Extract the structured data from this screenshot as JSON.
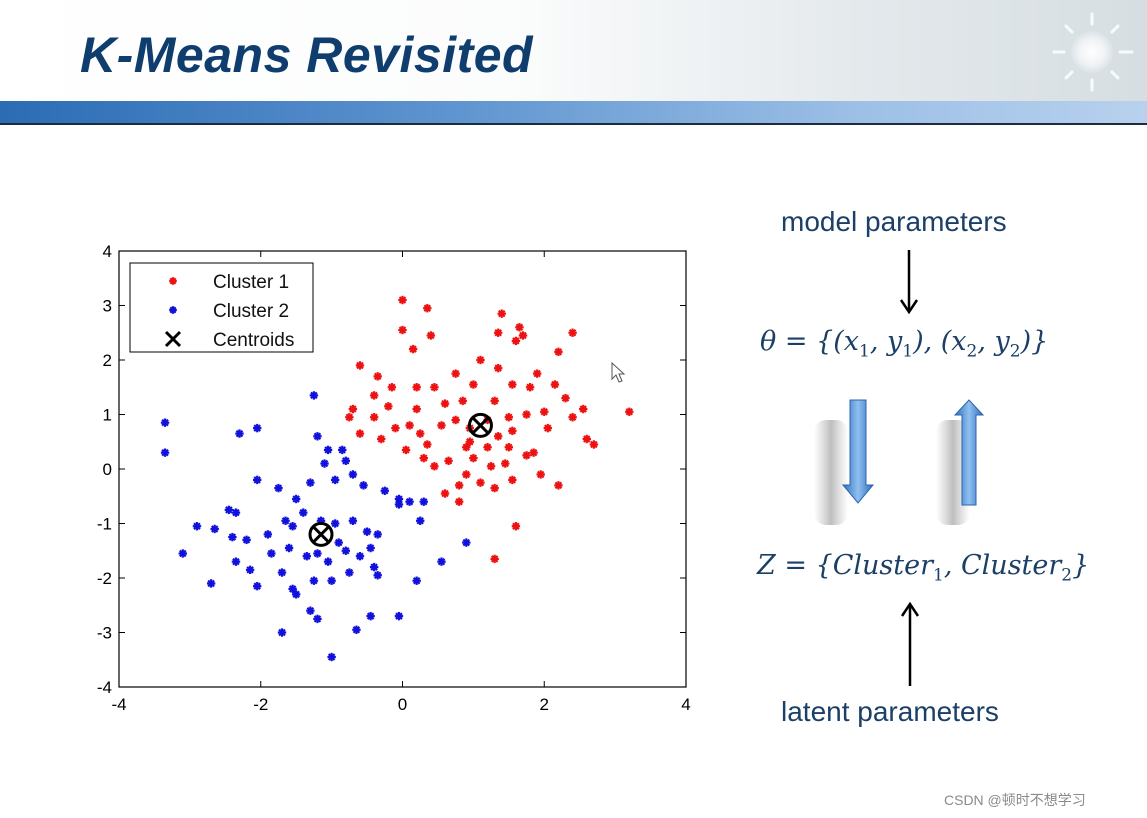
{
  "slide": {
    "title": "K-Means Revisited",
    "model_parameters_label": "model parameters",
    "theta_formula": {
      "lhs": "θ = {",
      "pairs": [
        "(x",
        "1",
        ", y",
        "1",
        "), (x",
        "2",
        ", y",
        "2",
        ")}"
      ]
    },
    "latent_parameters_label": "latent parameters",
    "z_formula": {
      "text_a": "Z = {Cluster",
      "sub_a": "1",
      "text_b": ",  Cluster",
      "sub_b": "2",
      "text_c": "}"
    },
    "watermark": "CSDN @顿时不想学习"
  },
  "colors": {
    "title": "#0f3d6e",
    "text": "#1b3f66",
    "cluster1": "#ee1111",
    "cluster2": "#1111dd",
    "centroid": "#000000",
    "arrow_blue": "#4a8fd8"
  },
  "chart_data": {
    "type": "scatter",
    "title": "",
    "xlabel": "",
    "ylabel": "",
    "xlim": [
      -4,
      4
    ],
    "ylim": [
      -4,
      4
    ],
    "x_ticks": [
      -4,
      -2,
      0,
      2,
      4
    ],
    "y_ticks": [
      -4,
      -3,
      -2,
      -1,
      0,
      1,
      2,
      3,
      4
    ],
    "grid": false,
    "legend_position": "top-left",
    "series": [
      {
        "name": "Cluster 1",
        "marker": "*",
        "points": [
          [
            0.0,
            3.1
          ],
          [
            0.35,
            2.95
          ],
          [
            1.4,
            2.85
          ],
          [
            1.65,
            2.6
          ],
          [
            2.4,
            2.5
          ],
          [
            1.35,
            2.5
          ],
          [
            0.0,
            2.55
          ],
          [
            -0.6,
            1.9
          ],
          [
            0.15,
            2.2
          ],
          [
            0.4,
            2.45
          ],
          [
            -0.35,
            1.7
          ],
          [
            -0.15,
            1.5
          ],
          [
            -0.7,
            1.1
          ],
          [
            -0.4,
            1.35
          ],
          [
            0.2,
            1.5
          ],
          [
            0.45,
            1.5
          ],
          [
            0.75,
            1.75
          ],
          [
            1.1,
            2.0
          ],
          [
            1.6,
            2.35
          ],
          [
            1.7,
            2.45
          ],
          [
            2.2,
            2.15
          ],
          [
            1.35,
            1.85
          ],
          [
            1.9,
            1.75
          ],
          [
            2.15,
            1.55
          ],
          [
            2.55,
            1.1
          ],
          [
            2.3,
            1.3
          ],
          [
            1.8,
            1.5
          ],
          [
            1.55,
            1.55
          ],
          [
            1.3,
            1.25
          ],
          [
            0.85,
            1.25
          ],
          [
            0.6,
            1.2
          ],
          [
            0.2,
            1.1
          ],
          [
            -0.2,
            1.15
          ],
          [
            -0.4,
            0.95
          ],
          [
            -0.75,
            0.95
          ],
          [
            -0.6,
            0.65
          ],
          [
            -0.3,
            0.55
          ],
          [
            0.05,
            0.35
          ],
          [
            0.25,
            0.65
          ],
          [
            0.35,
            0.45
          ],
          [
            0.55,
            0.8
          ],
          [
            0.75,
            0.9
          ],
          [
            0.95,
            0.75
          ],
          [
            1.2,
            0.9
          ],
          [
            1.5,
            0.95
          ],
          [
            1.75,
            1.0
          ],
          [
            2.0,
            1.05
          ],
          [
            2.4,
            0.95
          ],
          [
            2.6,
            0.55
          ],
          [
            2.7,
            0.45
          ],
          [
            3.2,
            1.05
          ],
          [
            0.45,
            0.05
          ],
          [
            0.65,
            0.15
          ],
          [
            0.8,
            -0.3
          ],
          [
            0.9,
            -0.1
          ],
          [
            1.0,
            0.2
          ],
          [
            1.2,
            0.4
          ],
          [
            1.35,
            0.6
          ],
          [
            1.5,
            0.4
          ],
          [
            1.45,
            0.1
          ],
          [
            1.75,
            0.25
          ],
          [
            1.95,
            -0.1
          ],
          [
            2.2,
            -0.3
          ],
          [
            1.55,
            -0.2
          ],
          [
            1.3,
            -0.35
          ],
          [
            1.1,
            -0.25
          ],
          [
            0.8,
            -0.6
          ],
          [
            0.6,
            -0.45
          ],
          [
            0.9,
            0.4
          ],
          [
            0.3,
            0.2
          ],
          [
            1.6,
            -1.05
          ],
          [
            1.3,
            -1.65
          ],
          [
            -0.1,
            0.75
          ],
          [
            0.1,
            0.8
          ],
          [
            1.0,
            1.55
          ],
          [
            0.95,
            0.5
          ],
          [
            1.55,
            0.7
          ],
          [
            1.85,
            0.3
          ],
          [
            2.05,
            0.75
          ],
          [
            1.25,
            0.05
          ]
        ]
      },
      {
        "name": "Cluster 2",
        "marker": "*",
        "points": [
          [
            -3.35,
            0.85
          ],
          [
            -3.35,
            0.3
          ],
          [
            -2.3,
            0.65
          ],
          [
            -2.05,
            0.75
          ],
          [
            -1.25,
            1.35
          ],
          [
            -1.2,
            0.6
          ],
          [
            -1.05,
            0.35
          ],
          [
            -0.85,
            0.35
          ],
          [
            -1.1,
            0.1
          ],
          [
            -0.8,
            0.15
          ],
          [
            -2.05,
            -0.2
          ],
          [
            -1.75,
            -0.35
          ],
          [
            -1.5,
            -0.55
          ],
          [
            -1.3,
            -0.25
          ],
          [
            -0.95,
            -0.2
          ],
          [
            -0.7,
            -0.1
          ],
          [
            -0.55,
            -0.3
          ],
          [
            -0.25,
            -0.4
          ],
          [
            -0.05,
            -0.55
          ],
          [
            0.1,
            -0.6
          ],
          [
            -2.45,
            -0.75
          ],
          [
            -2.35,
            -0.8
          ],
          [
            -2.9,
            -1.05
          ],
          [
            -2.65,
            -1.1
          ],
          [
            -2.2,
            -1.3
          ],
          [
            -1.9,
            -1.2
          ],
          [
            -1.65,
            -0.95
          ],
          [
            -1.55,
            -1.05
          ],
          [
            -1.4,
            -0.8
          ],
          [
            -0.95,
            -1.0
          ],
          [
            -0.7,
            -0.95
          ],
          [
            -0.5,
            -1.15
          ],
          [
            -0.35,
            -1.2
          ],
          [
            -3.1,
            -1.55
          ],
          [
            -2.7,
            -2.1
          ],
          [
            -2.35,
            -1.7
          ],
          [
            -2.15,
            -1.85
          ],
          [
            -2.05,
            -2.15
          ],
          [
            -1.7,
            -1.9
          ],
          [
            -1.55,
            -2.2
          ],
          [
            -1.35,
            -1.6
          ],
          [
            -1.2,
            -1.55
          ],
          [
            -1.05,
            -1.7
          ],
          [
            -0.8,
            -1.5
          ],
          [
            -0.6,
            -1.6
          ],
          [
            -0.4,
            -1.8
          ],
          [
            -0.35,
            -1.95
          ],
          [
            -0.75,
            -1.9
          ],
          [
            -1.0,
            -2.05
          ],
          [
            -1.25,
            -2.05
          ],
          [
            -1.5,
            -2.3
          ],
          [
            -1.3,
            -2.6
          ],
          [
            -1.2,
            -2.75
          ],
          [
            -1.7,
            -3.0
          ],
          [
            -0.45,
            -2.7
          ],
          [
            -0.65,
            -2.95
          ],
          [
            -1.0,
            -3.45
          ],
          [
            -0.05,
            -2.7
          ],
          [
            0.2,
            -2.05
          ],
          [
            0.55,
            -1.7
          ],
          [
            0.9,
            -1.35
          ],
          [
            0.3,
            -0.6
          ],
          [
            0.25,
            -0.95
          ],
          [
            -0.05,
            -0.65
          ],
          [
            -1.85,
            -1.55
          ],
          [
            -2.4,
            -1.25
          ],
          [
            -0.9,
            -1.35
          ],
          [
            -0.45,
            -1.45
          ],
          [
            -1.6,
            -1.45
          ],
          [
            -1.15,
            -0.95
          ]
        ]
      },
      {
        "name": "Centroids",
        "marker": "x",
        "points": [
          [
            1.1,
            0.8
          ],
          [
            -1.15,
            -1.2
          ]
        ]
      }
    ]
  }
}
